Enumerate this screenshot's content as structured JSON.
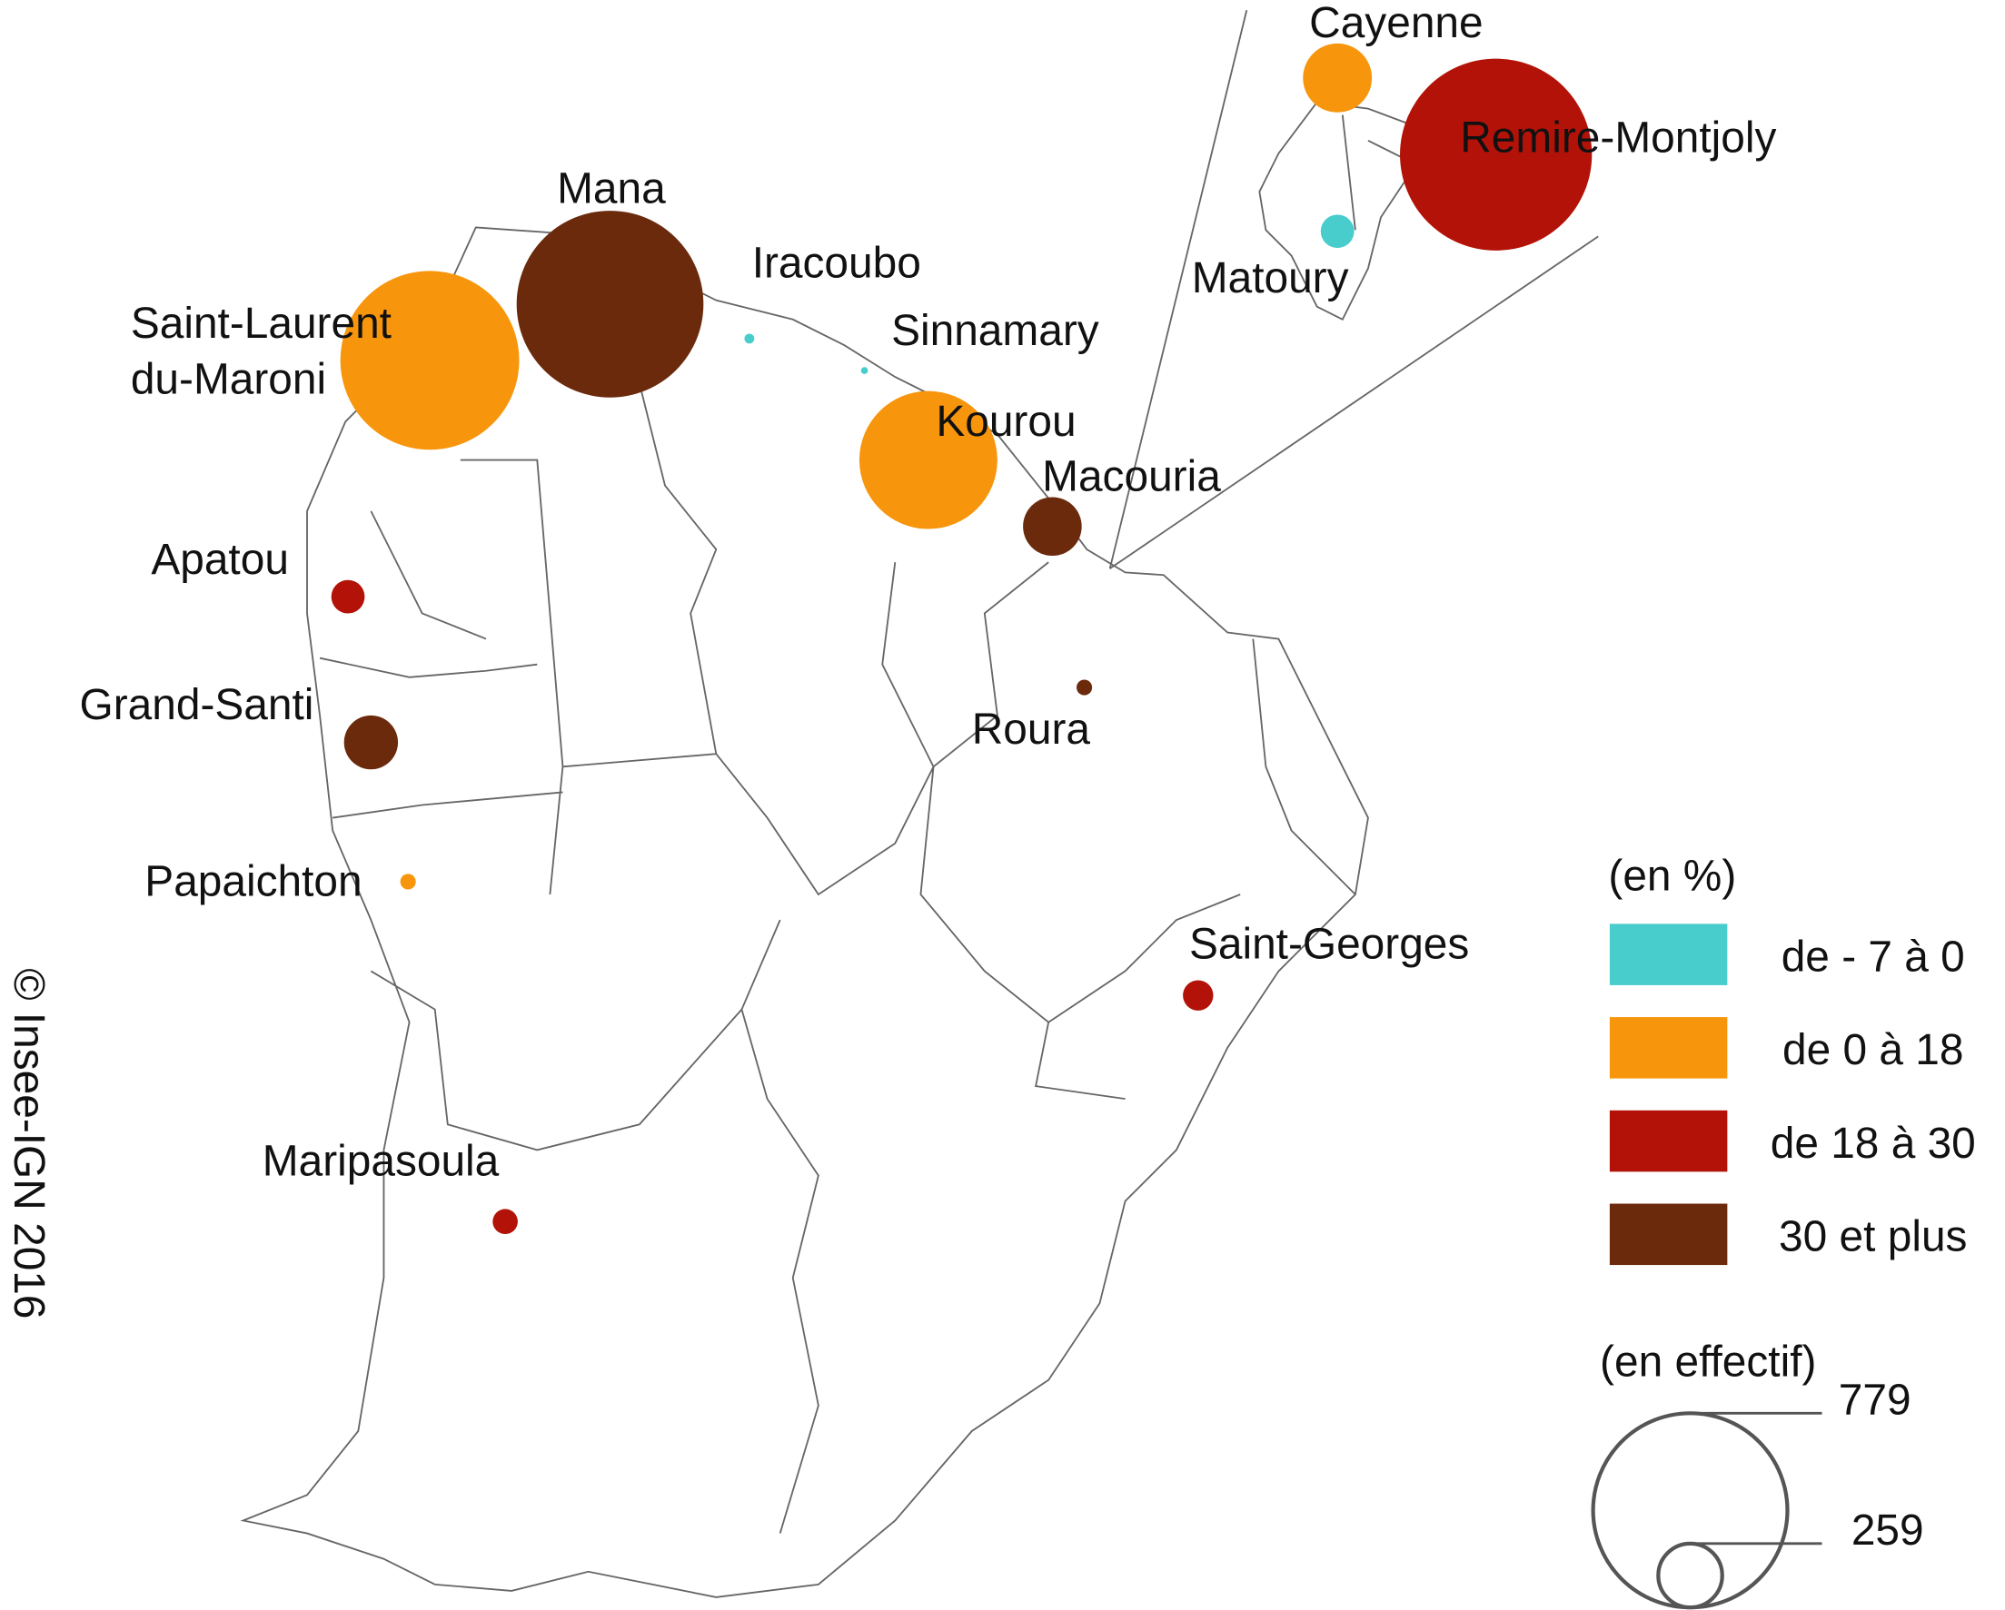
{
  "communes": [
    {
      "label": "Saint-Laurent\ndu-Maroni",
      "value": 660,
      "color": "#f7960c"
    },
    {
      "label": "Mana",
      "value": 720,
      "color": "#6b2a0c"
    },
    {
      "label": "Iracoubo",
      "value": 2,
      "color": "#48cccc"
    },
    {
      "label": "Sinnamary",
      "value": 1,
      "color": "#48cccc"
    },
    {
      "label": "Kourou",
      "value": 393,
      "color": "#f7960c"
    },
    {
      "label": "Macouria",
      "value": 71,
      "color": "#6b2a0c"
    },
    {
      "label": "Apatou",
      "value": 23,
      "color": "#b31208"
    },
    {
      "label": "Grand-Santi",
      "value": 60,
      "color": "#6b2a0c"
    },
    {
      "label": "Roura",
      "value": 5,
      "color": "#6b2a0c"
    },
    {
      "label": "Papaichton",
      "value": 5,
      "color": "#f7960c"
    },
    {
      "label": "Saint-Georges",
      "value": 19,
      "color": "#b31208"
    },
    {
      "label": "Maripasoula",
      "value": 13,
      "color": "#b31208"
    },
    {
      "label": "Cayenne",
      "value": 98,
      "color": "#f7960c"
    },
    {
      "label": "Remire-Montjoly",
      "value": 760,
      "color": "#b31208"
    },
    {
      "label": "Matoury",
      "value": 23,
      "color": "#48cccc"
    }
  ],
  "legend": {
    "color_title": "(en %)",
    "classes": [
      {
        "label": "de - 7 à 0",
        "color": "#48cccc"
      },
      {
        "label": "de 0 à 18",
        "color": "#f7960c"
      },
      {
        "label": "de 18 à 30",
        "color": "#b31208"
      },
      {
        "label": "30 et plus",
        "color": "#6b2a0c"
      }
    ],
    "size_title": "(en effectif)",
    "sizes": [
      779,
      259
    ]
  },
  "copyright": "© Insee-IGN 2016"
}
